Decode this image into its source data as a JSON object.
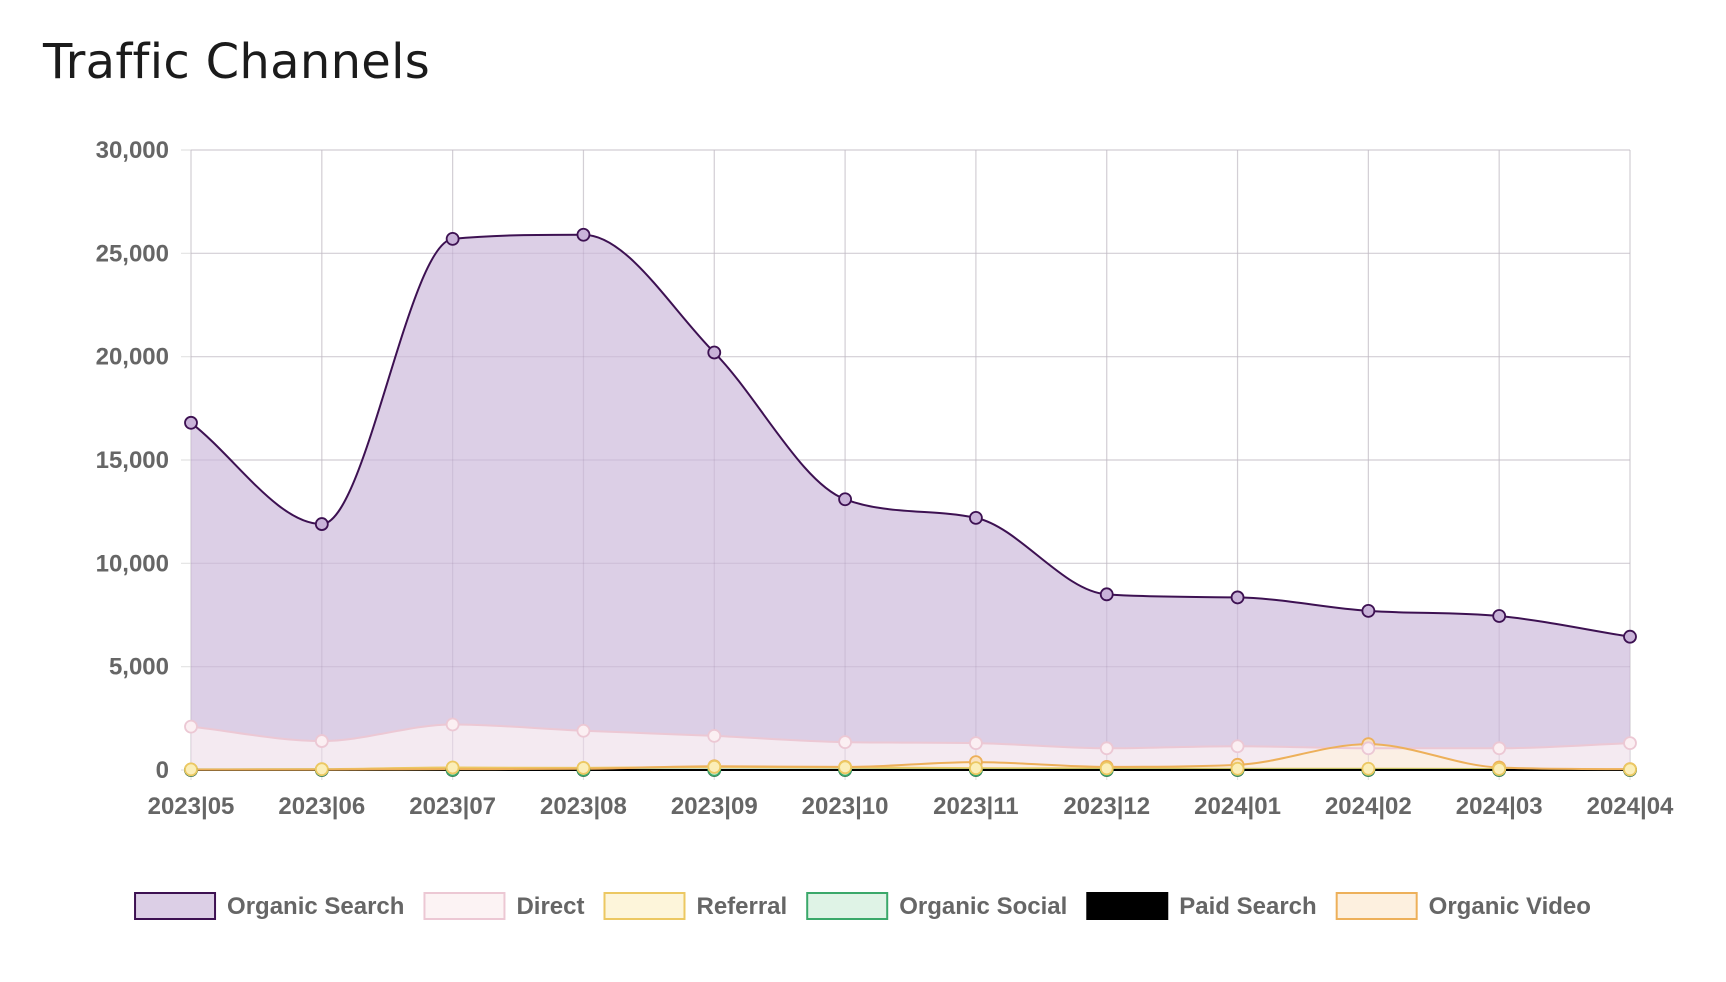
{
  "title": "Traffic Channels",
  "chart_data": {
    "type": "area",
    "categories": [
      "2023|05",
      "2023|06",
      "2023|07",
      "2023|08",
      "2023|09",
      "2023|10",
      "2023|11",
      "2023|12",
      "2024|01",
      "2024|02",
      "2024|03",
      "2024|04"
    ],
    "ylim": [
      0,
      30000
    ],
    "yticks": [
      0,
      5000,
      10000,
      15000,
      20000,
      25000,
      30000
    ],
    "ytick_labels": [
      "0",
      "5,000",
      "10,000",
      "15,000",
      "20,000",
      "25,000",
      "30,000"
    ],
    "grid": true,
    "legend_position": "bottom",
    "series": [
      {
        "name": "Organic Search",
        "values": [
          16800,
          11900,
          25700,
          25900,
          20200,
          13100,
          12200,
          8500,
          8350,
          7700,
          7450,
          6450
        ],
        "line_color": "#3d1152",
        "fill_color": "#dccfe6",
        "point_fill": "#c9b3d9"
      },
      {
        "name": "Direct",
        "values": [
          2100,
          1400,
          2200,
          1900,
          1650,
          1350,
          1300,
          1050,
          1150,
          1050,
          1050,
          1300
        ],
        "line_color": "#ecc8d4",
        "fill_color": "#fcf3f4",
        "point_fill": "#fbeff2"
      },
      {
        "name": "Referral",
        "values": [
          30,
          40,
          120,
          100,
          150,
          130,
          90,
          80,
          60,
          60,
          50,
          30
        ],
        "line_color": "#ecc862",
        "fill_color": "#fdf5da",
        "point_fill": "#fbeeb8"
      },
      {
        "name": "Organic Social",
        "values": [
          10,
          10,
          10,
          10,
          10,
          10,
          10,
          10,
          10,
          10,
          10,
          10
        ],
        "line_color": "#3aa86a",
        "fill_color": "#dff3e6",
        "point_fill": "#bde6cc"
      },
      {
        "name": "Paid Search",
        "values": [
          0,
          0,
          0,
          0,
          0,
          0,
          0,
          0,
          0,
          0,
          0,
          0
        ],
        "line_color": "#000000",
        "fill_color": "#000000",
        "point_fill": "#000000"
      },
      {
        "name": "Organic Video",
        "values": [
          20,
          20,
          40,
          60,
          180,
          150,
          380,
          150,
          250,
          1250,
          120,
          40
        ],
        "line_color": "#edb05a",
        "fill_color": "#fdf0df",
        "point_fill": "#fae2c2"
      }
    ]
  }
}
